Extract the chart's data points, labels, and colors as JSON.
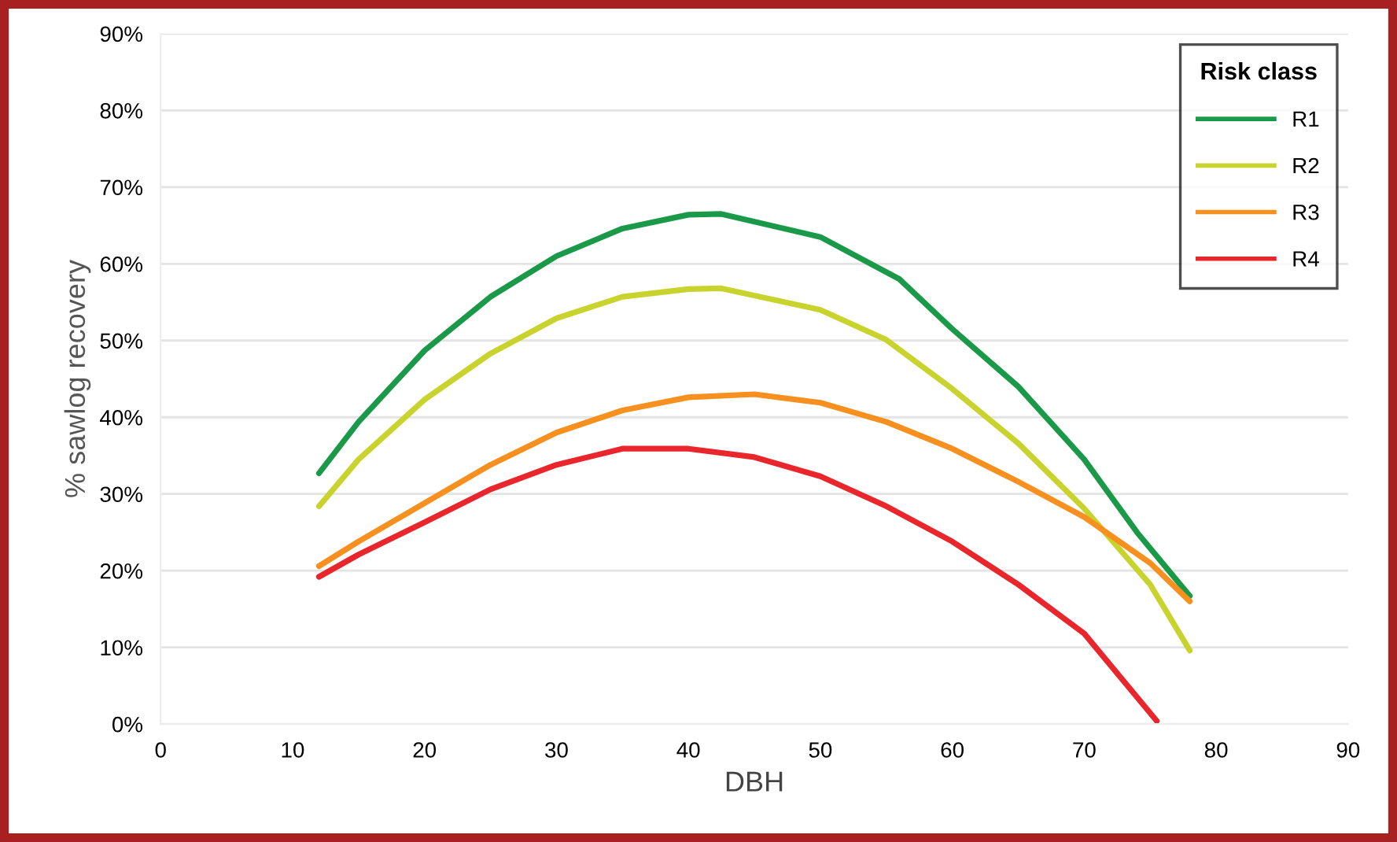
{
  "chart_data": {
    "type": "line",
    "xlabel": "DBH",
    "ylabel": "% sawlog recovery",
    "legend_title": "Risk class",
    "legend": "top right",
    "grid": "y",
    "marker": "none",
    "line_style": "solid",
    "xlim": [
      0,
      90
    ],
    "xticks": [
      0,
      10,
      20,
      30,
      40,
      50,
      60,
      70,
      80,
      90
    ],
    "ylim": [
      0,
      90
    ],
    "yticks": [
      {
        "value": 0,
        "label": "0%"
      },
      {
        "value": 10,
        "label": "10%"
      },
      {
        "value": 20,
        "label": "20%"
      },
      {
        "value": 30,
        "label": "30%"
      },
      {
        "value": 40,
        "label": "40%"
      },
      {
        "value": 50,
        "label": "50%"
      },
      {
        "value": 60,
        "label": "60%"
      },
      {
        "value": 70,
        "label": "70%"
      },
      {
        "value": 80,
        "label": "80%"
      },
      {
        "value": 90,
        "label": "90%"
      }
    ],
    "series": [
      {
        "name": "R1",
        "color": "#1a9a48",
        "x": [
          12,
          15,
          20,
          25,
          30,
          35,
          40,
          42.5,
          50,
          56,
          60,
          65,
          70,
          74,
          78
        ],
        "values": [
          32.7,
          39.4,
          48.7,
          55.7,
          61,
          64.6,
          66.4,
          66.5,
          63.5,
          58,
          51.5,
          44,
          34.5,
          25,
          16.7
        ]
      },
      {
        "name": "R2",
        "color": "#c9d32e",
        "x": [
          12,
          15,
          20,
          25,
          30,
          35,
          40,
          42.5,
          50,
          55,
          60,
          65,
          70,
          75,
          78
        ],
        "values": [
          28.4,
          34.5,
          42.3,
          48.3,
          52.9,
          55.7,
          56.7,
          56.8,
          54,
          50.1,
          43.7,
          36.6,
          28.1,
          18.2,
          9.6
        ]
      },
      {
        "name": "R3",
        "color": "#f7901e",
        "x": [
          12,
          15,
          20,
          25,
          30,
          35,
          40,
          45,
          50,
          55,
          60,
          65,
          70,
          75,
          78
        ],
        "values": [
          20.6,
          23.8,
          28.8,
          33.8,
          38,
          40.9,
          42.6,
          43,
          41.9,
          39.4,
          35.9,
          31.6,
          27,
          21,
          16
        ]
      },
      {
        "name": "R4",
        "color": "#e8262b",
        "x": [
          12,
          15,
          20,
          25,
          30,
          35,
          40,
          45,
          50,
          55,
          60,
          65,
          70,
          75.5
        ],
        "values": [
          19.2,
          22.1,
          26.3,
          30.6,
          33.8,
          35.9,
          35.9,
          34.8,
          32.3,
          28.4,
          23.8,
          18.2,
          11.8,
          0.4
        ]
      }
    ]
  }
}
